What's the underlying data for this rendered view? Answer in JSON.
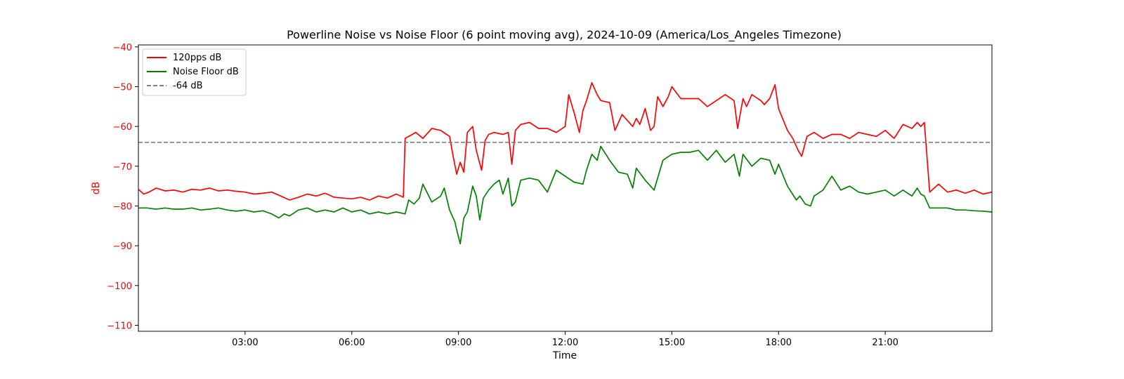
{
  "chart_data": {
    "type": "line",
    "title": "Powerline Noise vs Noise Floor (6 point moving avg), 2024-10-09 (America/Los_Angeles Timezone)",
    "xlabel": "Time",
    "ylabel": "dB",
    "x_unit": "hours",
    "xlim": [
      0,
      24
    ],
    "ylim": [
      -111.5,
      -39.5
    ],
    "x_ticks": [
      {
        "value": 3,
        "label": "03:00"
      },
      {
        "value": 6,
        "label": "06:00"
      },
      {
        "value": 9,
        "label": "09:00"
      },
      {
        "value": 12,
        "label": "12:00"
      },
      {
        "value": 15,
        "label": "15:00"
      },
      {
        "value": 18,
        "label": "18:00"
      },
      {
        "value": 21,
        "label": "21:00"
      }
    ],
    "y_ticks": [
      {
        "value": -40,
        "label": "−40"
      },
      {
        "value": -50,
        "label": "−50"
      },
      {
        "value": -60,
        "label": "−60"
      },
      {
        "value": -70,
        "label": "−70"
      },
      {
        "value": -80,
        "label": "−80"
      },
      {
        "value": -90,
        "label": "−90"
      },
      {
        "value": -100,
        "label": "−100"
      },
      {
        "value": -110,
        "label": "−110"
      }
    ],
    "grid": false,
    "legend_position": "top-left",
    "ylabel_color": "#ff0000",
    "series": [
      {
        "name": "120pps dB",
        "color": "#ff0000",
        "style": "solid",
        "x": [
          0.0,
          0.15,
          0.3,
          0.5,
          0.75,
          1.0,
          1.25,
          1.5,
          1.75,
          2.0,
          2.25,
          2.5,
          2.75,
          3.0,
          3.25,
          3.5,
          3.75,
          4.0,
          4.25,
          4.5,
          4.75,
          5.0,
          5.25,
          5.5,
          5.75,
          6.0,
          6.25,
          6.5,
          6.75,
          7.0,
          7.25,
          7.45,
          7.5,
          7.6,
          7.8,
          8.0,
          8.25,
          8.5,
          8.75,
          8.85,
          8.95,
          9.05,
          9.15,
          9.25,
          9.4,
          9.5,
          9.65,
          9.75,
          9.85,
          10.0,
          10.25,
          10.4,
          10.5,
          10.6,
          10.75,
          11.0,
          11.25,
          11.5,
          11.75,
          12.0,
          12.1,
          12.25,
          12.4,
          12.5,
          12.6,
          12.75,
          12.9,
          13.0,
          13.25,
          13.4,
          13.5,
          13.6,
          13.75,
          13.9,
          14.0,
          14.1,
          14.25,
          14.4,
          14.5,
          14.6,
          14.75,
          14.9,
          15.0,
          15.25,
          15.5,
          15.75,
          16.0,
          16.25,
          16.5,
          16.75,
          16.85,
          17.0,
          17.1,
          17.25,
          17.5,
          17.6,
          17.75,
          17.9,
          18.0,
          18.25,
          18.4,
          18.55,
          18.65,
          18.8,
          19.0,
          19.25,
          19.5,
          19.75,
          20.0,
          20.25,
          20.5,
          20.75,
          21.0,
          21.25,
          21.5,
          21.75,
          21.9,
          22.0,
          22.1,
          22.25,
          22.5,
          22.75,
          23.0,
          23.25,
          23.5,
          23.75,
          24.0
        ],
        "values": [
          -75.8,
          -77.0,
          -76.5,
          -75.5,
          -76.2,
          -76.0,
          -76.5,
          -75.8,
          -76.0,
          -75.5,
          -76.2,
          -76.0,
          -76.3,
          -76.5,
          -77.0,
          -76.8,
          -76.5,
          -77.5,
          -78.5,
          -77.8,
          -77.0,
          -77.5,
          -76.8,
          -77.8,
          -78.0,
          -78.2,
          -77.8,
          -78.5,
          -77.5,
          -78.0,
          -77.0,
          -77.8,
          -63.0,
          -62.5,
          -61.5,
          -63.0,
          -60.5,
          -61.0,
          -62.5,
          -67.5,
          -72.0,
          -69.0,
          -71.5,
          -61.5,
          -60.0,
          -66.0,
          -71.0,
          -63.5,
          -62.0,
          -61.5,
          -62.0,
          -61.5,
          -69.5,
          -61.0,
          -59.5,
          -59.0,
          -60.5,
          -60.5,
          -61.5,
          -60.0,
          -52.0,
          -56.5,
          -61.5,
          -56.0,
          -53.5,
          -49.0,
          -52.0,
          -53.5,
          -54.0,
          -61.0,
          -59.0,
          -57.0,
          -58.5,
          -60.0,
          -58.0,
          -59.5,
          -55.5,
          -61.0,
          -60.0,
          -52.5,
          -55.0,
          -52.5,
          -50.0,
          -53.0,
          -53.0,
          -53.0,
          -55.0,
          -53.5,
          -52.0,
          -53.5,
          -60.5,
          -53.0,
          -55.0,
          -52.0,
          -53.5,
          -54.5,
          -53.0,
          -49.5,
          -55.5,
          -61.0,
          -63.0,
          -66.0,
          -67.5,
          -62.5,
          -61.5,
          -63.0,
          -62.0,
          -62.0,
          -63.0,
          -61.5,
          -62.0,
          -62.5,
          -61.0,
          -63.0,
          -59.5,
          -60.5,
          -59.0,
          -60.0,
          -59.0,
          -76.5,
          -74.5,
          -76.5,
          -76.0,
          -76.8,
          -76.0,
          -77.0,
          -76.5
        ]
      },
      {
        "name": "Noise Floor dB",
        "color": "#008000",
        "style": "solid",
        "x": [
          0.0,
          0.25,
          0.5,
          0.75,
          1.0,
          1.25,
          1.5,
          1.75,
          2.0,
          2.25,
          2.5,
          2.75,
          3.0,
          3.25,
          3.5,
          3.75,
          3.95,
          4.1,
          4.25,
          4.5,
          4.75,
          5.0,
          5.25,
          5.5,
          5.75,
          6.0,
          6.25,
          6.5,
          6.75,
          7.0,
          7.25,
          7.5,
          7.6,
          7.75,
          7.9,
          8.0,
          8.25,
          8.5,
          8.6,
          8.75,
          8.9,
          8.95,
          9.05,
          9.15,
          9.25,
          9.4,
          9.5,
          9.6,
          9.7,
          9.85,
          10.0,
          10.15,
          10.25,
          10.4,
          10.5,
          10.6,
          10.75,
          11.0,
          11.25,
          11.5,
          11.75,
          12.0,
          12.25,
          12.5,
          12.6,
          12.75,
          12.9,
          13.0,
          13.25,
          13.5,
          13.75,
          13.9,
          14.0,
          14.25,
          14.5,
          14.75,
          15.0,
          15.25,
          15.5,
          15.75,
          16.0,
          16.25,
          16.5,
          16.75,
          16.9,
          17.0,
          17.25,
          17.5,
          17.75,
          17.9,
          18.0,
          18.25,
          18.5,
          18.6,
          18.75,
          18.9,
          19.0,
          19.25,
          19.5,
          19.75,
          20.0,
          20.25,
          20.5,
          20.75,
          21.0,
          21.25,
          21.5,
          21.75,
          21.9,
          22.0,
          22.1,
          22.25,
          22.5,
          22.75,
          23.0,
          23.25,
          23.5,
          23.75,
          24.0
        ],
        "values": [
          -80.5,
          -80.5,
          -80.8,
          -80.5,
          -80.8,
          -80.8,
          -80.5,
          -81.0,
          -80.8,
          -80.5,
          -81.0,
          -81.3,
          -81.0,
          -81.5,
          -81.2,
          -82.0,
          -83.0,
          -82.0,
          -82.5,
          -81.0,
          -80.5,
          -81.5,
          -81.0,
          -81.5,
          -80.5,
          -81.5,
          -81.0,
          -82.0,
          -81.5,
          -82.0,
          -81.5,
          -82.0,
          -78.5,
          -79.5,
          -78.0,
          -74.5,
          -79.0,
          -77.5,
          -75.5,
          -81.0,
          -84.0,
          -86.0,
          -89.5,
          -83.0,
          -81.5,
          -75.0,
          -77.5,
          -83.5,
          -78.0,
          -76.0,
          -74.5,
          -73.5,
          -77.0,
          -73.0,
          -80.0,
          -79.0,
          -73.5,
          -73.0,
          -73.5,
          -76.5,
          -71.0,
          -72.5,
          -74.0,
          -74.5,
          -71.0,
          -67.0,
          -68.5,
          -65.0,
          -68.5,
          -71.5,
          -72.0,
          -75.5,
          -70.5,
          -73.5,
          -76.0,
          -68.5,
          -67.0,
          -66.5,
          -66.5,
          -66.0,
          -68.5,
          -66.0,
          -69.0,
          -67.0,
          -72.5,
          -67.0,
          -70.0,
          -68.0,
          -68.5,
          -72.0,
          -69.5,
          -75.0,
          -78.5,
          -77.5,
          -79.5,
          -80.0,
          -77.5,
          -76.0,
          -72.5,
          -76.0,
          -75.0,
          -76.5,
          -77.0,
          -76.5,
          -76.0,
          -77.5,
          -76.0,
          -77.5,
          -75.5,
          -77.0,
          -77.5,
          -80.5,
          -80.5,
          -80.5,
          -81.0,
          -81.0,
          -81.2,
          -81.3,
          -81.5
        ]
      },
      {
        "name": "-64 dB",
        "color": "#808080",
        "style": "dashed",
        "x": [
          0,
          24
        ],
        "values": [
          -64,
          -64
        ]
      }
    ]
  }
}
